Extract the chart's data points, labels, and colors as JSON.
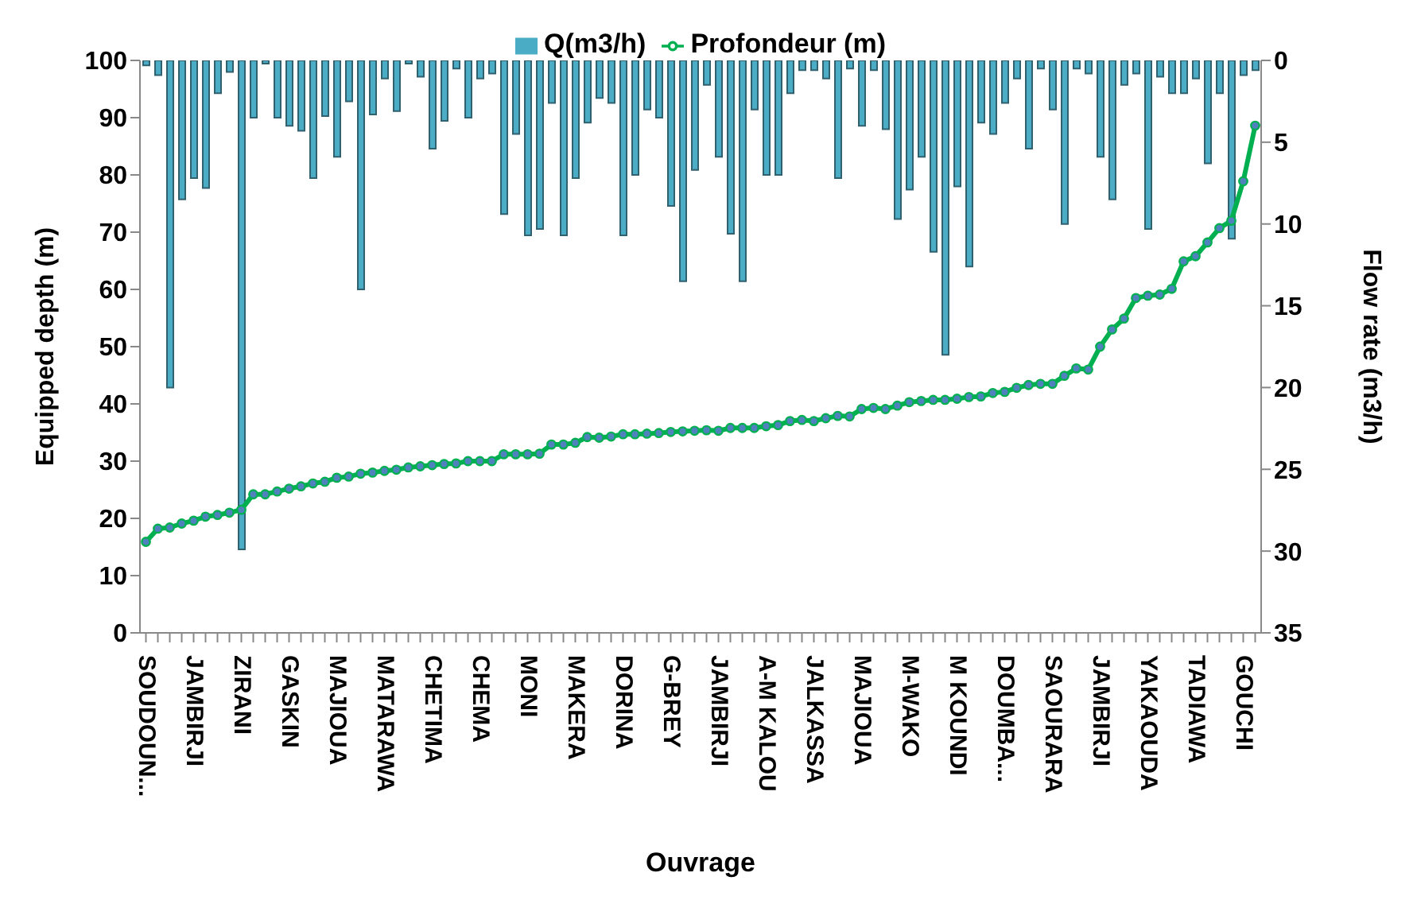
{
  "chart_data": {
    "type": "bar",
    "xlabel": "Ouvrage",
    "ylabel": "Equipped depth (m)",
    "y2label": "Flow rate (m3/h)",
    "categories": [
      "SOUDOUN...",
      null,
      null,
      null,
      "JAMBIRJI",
      null,
      null,
      null,
      "ZIRANI",
      null,
      null,
      null,
      "GASKIN",
      null,
      null,
      null,
      "MAJIOUA",
      null,
      null,
      null,
      "MATARAWA",
      null,
      null,
      null,
      "CHETIMA",
      null,
      null,
      null,
      "CHEMA",
      null,
      null,
      null,
      "MONI",
      null,
      null,
      null,
      "MAKERA",
      null,
      null,
      null,
      "DORINA",
      null,
      null,
      null,
      "G-BREY",
      null,
      null,
      null,
      "JAMBIRJI",
      null,
      null,
      null,
      "A-M KALOU",
      null,
      null,
      null,
      "JALKASSA",
      null,
      null,
      null,
      "MAJIOUA",
      null,
      null,
      null,
      "M-WAKO",
      null,
      null,
      null,
      "M KOUNDI",
      null,
      null,
      null,
      "DOUMBA...",
      null,
      null,
      null,
      "SAOURARA",
      null,
      null,
      null,
      "JAMBIRJI",
      null,
      null,
      null,
      "YAKAOUDA",
      null,
      null,
      null,
      "TADIAWA",
      null,
      null,
      null,
      "GOUCHI",
      null
    ],
    "series": [
      {
        "name": "Q(m3/h)",
        "axis": "y2",
        "color": "#4bacc6",
        "values": [
          0.3,
          0.9,
          20.0,
          8.5,
          7.2,
          7.8,
          2.0,
          0.7,
          29.9,
          3.5,
          0.2,
          3.5,
          4.0,
          4.3,
          7.2,
          3.4,
          5.9,
          2.5,
          14.0,
          3.3,
          1.1,
          3.1,
          0.2,
          1.0,
          5.4,
          3.7,
          0.5,
          3.5,
          1.1,
          0.8,
          9.4,
          4.5,
          10.7,
          10.3,
          2.6,
          10.7,
          7.2,
          3.8,
          2.3,
          2.6,
          10.7,
          7.0,
          3.0,
          3.5,
          8.9,
          13.5,
          6.7,
          1.5,
          5.9,
          10.6,
          13.5,
          3.0,
          7.0,
          7.0,
          2.0,
          0.6,
          0.6,
          1.1,
          7.2,
          0.5,
          4.0,
          0.6,
          4.2,
          9.7,
          7.9,
          5.9,
          11.7,
          18.0,
          7.7,
          12.6,
          3.8,
          4.5,
          2.6,
          1.1,
          5.4,
          0.5,
          3.0,
          10.0,
          0.5,
          0.8,
          5.9,
          8.5,
          1.5,
          0.8,
          10.3,
          1.0,
          2.0,
          2.0,
          1.1,
          6.3,
          2.0,
          10.9,
          0.9,
          0.6
        ]
      },
      {
        "name": "Profondeur (m)",
        "type": "line",
        "color": "#00b050",
        "values": [
          15.9,
          18.2,
          18.4,
          19.1,
          19.6,
          20.3,
          20.6,
          21.0,
          21.5,
          24.2,
          24.2,
          24.7,
          25.2,
          25.6,
          26.1,
          26.4,
          27.1,
          27.3,
          27.8,
          28.0,
          28.3,
          28.5,
          28.9,
          29.1,
          29.3,
          29.5,
          29.6,
          30.0,
          30.0,
          30.0,
          31.2,
          31.2,
          31.2,
          31.3,
          32.9,
          32.9,
          33.2,
          34.2,
          34.1,
          34.3,
          34.7,
          34.7,
          34.8,
          34.9,
          35.1,
          35.2,
          35.3,
          35.4,
          35.3,
          35.8,
          35.8,
          35.8,
          36.1,
          36.3,
          37.0,
          37.2,
          37.0,
          37.5,
          37.9,
          37.8,
          39.1,
          39.3,
          39.1,
          39.7,
          40.3,
          40.5,
          40.7,
          40.7,
          40.9,
          41.2,
          41.3,
          41.9,
          42.1,
          42.8,
          43.3,
          43.5,
          43.5,
          44.9,
          46.2,
          46.0,
          50.0,
          53.0,
          54.9,
          58.5,
          58.9,
          59.1,
          60.1,
          64.9,
          65.8,
          68.2,
          70.7,
          72.0,
          78.9,
          88.6
        ]
      }
    ],
    "ylim": [
      0,
      100
    ],
    "yticks": [
      0,
      10,
      20,
      30,
      40,
      50,
      60,
      70,
      80,
      90,
      100
    ],
    "y2lim": [
      35,
      0
    ],
    "y2ticks": [
      0,
      5,
      10,
      15,
      20,
      25,
      30,
      35
    ],
    "grid": false,
    "legend": "top",
    "marker": "circle",
    "line_style": "solid"
  }
}
